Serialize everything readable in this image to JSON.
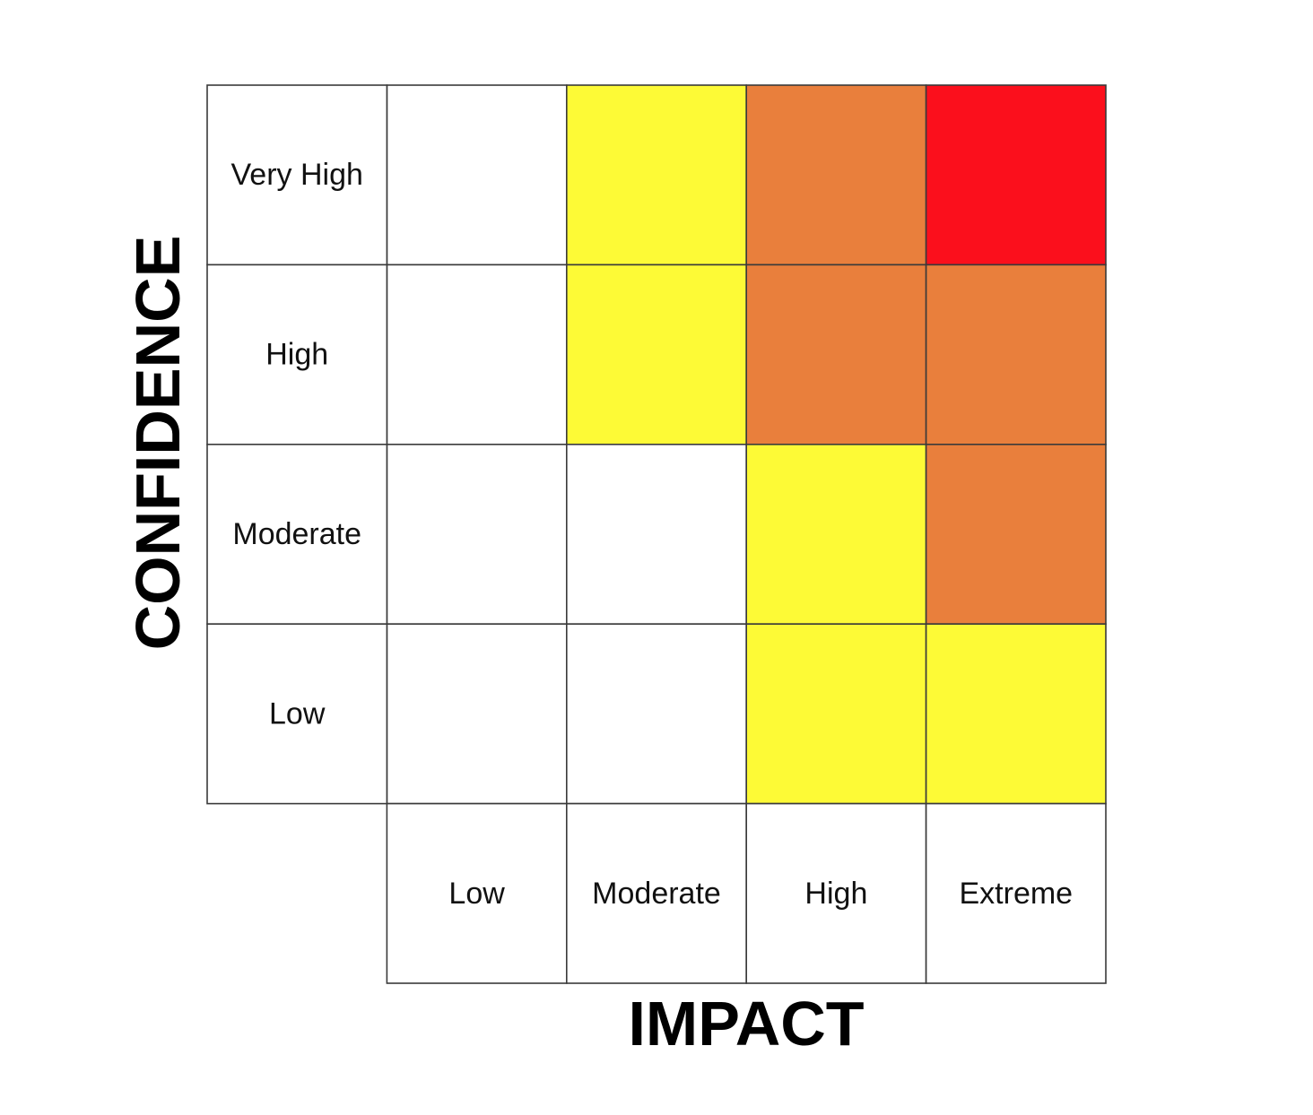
{
  "chart_data": {
    "type": "heatmap",
    "xlabel": "IMPACT",
    "ylabel": "CONFIDENCE",
    "x_categories": [
      "Low",
      "Moderate",
      "High",
      "Extreme"
    ],
    "y_categories": [
      "Very High",
      "High",
      "Moderate",
      "Low"
    ],
    "cells": [
      [
        "white",
        "yellow",
        "orange",
        "red"
      ],
      [
        "white",
        "yellow",
        "orange",
        "orange"
      ],
      [
        "white",
        "white",
        "yellow",
        "orange"
      ],
      [
        "white",
        "white",
        "yellow",
        "yellow"
      ]
    ],
    "colors": {
      "white": "#ffffff",
      "yellow": "#fdfa36",
      "orange": "#e97f3c",
      "red": "#fb0f1c"
    }
  }
}
